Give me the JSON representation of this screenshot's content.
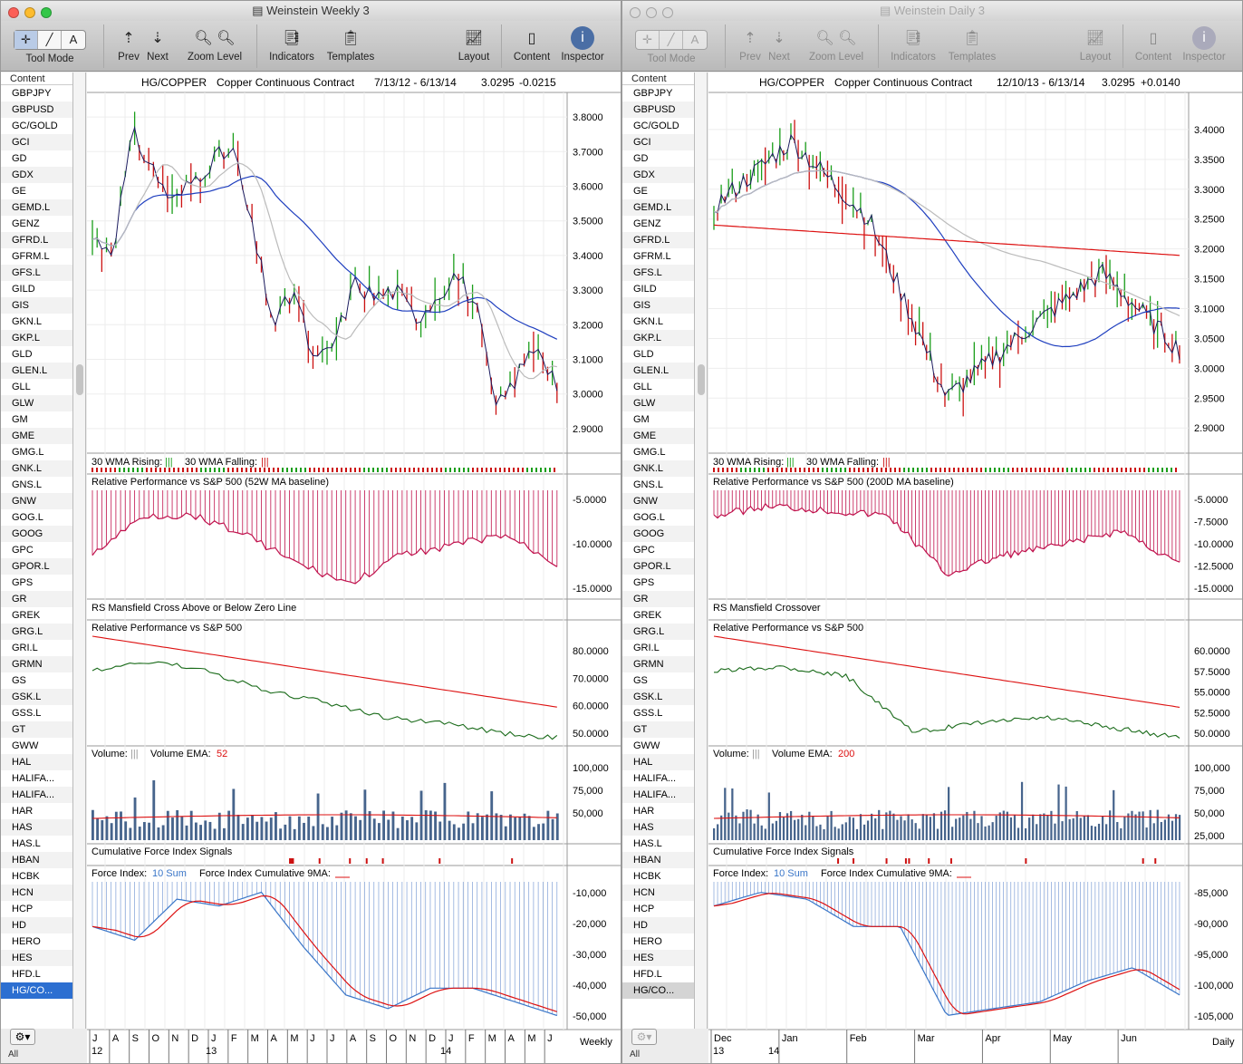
{
  "windows": [
    {
      "id": "weekly",
      "title": "Weinstein Weekly 3",
      "active": true,
      "toolbar": {
        "tool_mode": "Tool Mode",
        "prev": "Prev",
        "next": "Next",
        "zoom_level": "Zoom  Level",
        "indicators": "Indicators",
        "templates": "Templates",
        "layout": "Layout",
        "content": "Content",
        "inspector": "Inspector"
      },
      "sidebar": {
        "header": "Content",
        "items": [
          "GBPJPY",
          "GBPUSD",
          "GC/GOLD",
          "GCI",
          "GD",
          "GDX",
          "GE",
          "GEMD.L",
          "GENZ",
          "GFRD.L",
          "GFRM.L",
          "GFS.L",
          "GILD",
          "GIS",
          "GKN.L",
          "GKP.L",
          "GLD",
          "GLEN.L",
          "GLL",
          "GLW",
          "GM",
          "GME",
          "GMG.L",
          "GNK.L",
          "GNS.L",
          "GNW",
          "GOG.L",
          "GOOG",
          "GPC",
          "GPOR.L",
          "GPS",
          "GR",
          "GREK",
          "GRG.L",
          "GRI.L",
          "GRMN",
          "GS",
          "GSK.L",
          "GSS.L",
          "GT",
          "GWW",
          "HAL",
          "HALIFA...",
          "HALIFA...",
          "HAR",
          "HAS",
          "HAS.L",
          "HBAN",
          "HCBK",
          "HCN",
          "HCP",
          "HD",
          "HERO",
          "HES",
          "HFD.L",
          "HG/CO..."
        ],
        "selected": "HG/CO...",
        "footer": "All"
      },
      "header": {
        "symbol": "HG/COPPER",
        "name": "Copper Continuous Contract",
        "range": "7/13/12 - 6/13/14",
        "last": "3.0295",
        "change": "-0.0215"
      },
      "price_axis": [
        "3.8000",
        "3.7000",
        "3.6000",
        "3.5000",
        "3.4000",
        "3.3000",
        "3.2000",
        "3.1000",
        "3.0000",
        "2.9000"
      ],
      "wma_panel": {
        "rising": "30 WMA Rising:",
        "rising_mark": "|||",
        "falling": "30 WMA Falling:",
        "falling_mark": "|||"
      },
      "rp1": {
        "title": "Relative Performance vs S&P 500 (52W MA baseline)",
        "axis": [
          "-5.0000",
          "-10.0000",
          "-15.0000"
        ]
      },
      "rsm": {
        "title": "RS Mansfield Cross Above or Below Zero Line"
      },
      "rp2": {
        "title": "Relative Performance vs S&P 500",
        "axis": [
          "80.0000",
          "70.0000",
          "60.0000",
          "50.0000"
        ]
      },
      "vol": {
        "label": "Volume:",
        "mark": "|||",
        "ema": "Volume EMA:",
        "ema_val": "52",
        "axis": [
          "100,000",
          "75,000",
          "50,000"
        ]
      },
      "cfi": {
        "title": "Cumulative Force Index Signals"
      },
      "fi": {
        "label": "Force Index:",
        "sum": "10 Sum",
        "cum": "Force Index Cumulative 9MA:",
        "axis": [
          "-10,000",
          "-20,000",
          "-30,000",
          "-40,000",
          "-50,000"
        ]
      },
      "xaxis": {
        "months": [
          "J",
          "A",
          "S",
          "O",
          "N",
          "D",
          "J",
          "F",
          "M",
          "A",
          "M",
          "J",
          "J",
          "A",
          "S",
          "O",
          "N",
          "D",
          "J",
          "F",
          "M",
          "A",
          "M",
          "J"
        ],
        "years": [
          "12",
          "13",
          "14"
        ],
        "period": "Weekly"
      }
    },
    {
      "id": "daily",
      "title": "Weinstein Daily 3",
      "active": false,
      "toolbar": {
        "tool_mode": "Tool Mode",
        "prev": "Prev",
        "next": "Next",
        "zoom_level": "Zoom  Level",
        "indicators": "Indicators",
        "templates": "Templates",
        "layout": "Layout",
        "content": "Content",
        "inspector": "Inspector"
      },
      "sidebar": {
        "header": "Content",
        "items": [
          "GBPJPY",
          "GBPUSD",
          "GC/GOLD",
          "GCI",
          "GD",
          "GDX",
          "GE",
          "GEMD.L",
          "GENZ",
          "GFRD.L",
          "GFRM.L",
          "GFS.L",
          "GILD",
          "GIS",
          "GKN.L",
          "GKP.L",
          "GLD",
          "GLEN.L",
          "GLL",
          "GLW",
          "GM",
          "GME",
          "GMG.L",
          "GNK.L",
          "GNS.L",
          "GNW",
          "GOG.L",
          "GOOG",
          "GPC",
          "GPOR.L",
          "GPS",
          "GR",
          "GREK",
          "GRG.L",
          "GRI.L",
          "GRMN",
          "GS",
          "GSK.L",
          "GSS.L",
          "GT",
          "GWW",
          "HAL",
          "HALIFA...",
          "HALIFA...",
          "HAR",
          "HAS",
          "HAS.L",
          "HBAN",
          "HCBK",
          "HCN",
          "HCP",
          "HD",
          "HERO",
          "HES",
          "HFD.L",
          "HG/CO..."
        ],
        "selected": "HG/CO...",
        "footer": "All"
      },
      "header": {
        "symbol": "HG/COPPER",
        "name": "Copper Continuous Contract",
        "range": "12/10/13 - 6/13/14",
        "last": "3.0295",
        "change": "+0.0140"
      },
      "price_axis": [
        "3.4000",
        "3.3500",
        "3.3000",
        "3.2500",
        "3.2000",
        "3.1500",
        "3.1000",
        "3.0500",
        "3.0000",
        "2.9500",
        "2.9000"
      ],
      "wma_panel": {
        "rising": "30 WMA Rising:",
        "rising_mark": "|||",
        "falling": "30 WMA Falling:",
        "falling_mark": "|||"
      },
      "rp1": {
        "title": "Relative Performance vs S&P 500 (200D MA baseline)",
        "axis": [
          "-5.0000",
          "-7.5000",
          "-10.0000",
          "-12.5000",
          "-15.0000"
        ]
      },
      "rsm": {
        "title": "RS Mansfield Crossover"
      },
      "rp2": {
        "title": "Relative Performance vs S&P 500",
        "axis": [
          "60.0000",
          "57.5000",
          "55.0000",
          "52.5000",
          "50.0000"
        ]
      },
      "vol": {
        "label": "Volume:",
        "mark": "|||",
        "ema": "Volume EMA:",
        "ema_val": "200",
        "axis": [
          "100,000",
          "75,000",
          "50,000",
          "25,000"
        ]
      },
      "cfi": {
        "title": "Cumulative Force Index Signals"
      },
      "fi": {
        "label": "Force Index:",
        "sum": "10 Sum",
        "cum": "Force Index Cumulative 9MA:",
        "axis": [
          "-85,000",
          "-90,000",
          "-95,000",
          "-100,000",
          "-105,000"
        ]
      },
      "xaxis": {
        "months": [
          "Dec",
          "Jan",
          "Feb",
          "Mar",
          "Apr",
          "May",
          "Jun"
        ],
        "years": [
          "13",
          "14"
        ],
        "period": "Daily"
      }
    }
  ],
  "chart_data": [
    {
      "type": "line",
      "title": "HG/COPPER Copper Continuous Contract",
      "x": [
        "Jul-12",
        "Aug-12",
        "Sep-12",
        "Oct-12",
        "Nov-12",
        "Dec-12",
        "Jan-13",
        "Feb-13",
        "Mar-13",
        "Apr-13",
        "May-13",
        "Jun-13",
        "Jul-13",
        "Aug-13",
        "Sep-13",
        "Oct-13",
        "Nov-13",
        "Dec-13",
        "Jan-14",
        "Feb-14",
        "Mar-14",
        "Apr-14",
        "May-14",
        "Jun-14"
      ],
      "series": [
        {
          "values": [
            3.45,
            3.42,
            3.75,
            3.65,
            3.55,
            3.62,
            3.68,
            3.7,
            3.45,
            3.2,
            3.3,
            3.08,
            3.15,
            3.32,
            3.28,
            3.3,
            3.22,
            3.28,
            3.35,
            3.25,
            2.95,
            3.05,
            3.15,
            3.03
          ]
        }
      ],
      "ylim": [
        2.85,
        3.85
      ]
    },
    {
      "type": "line",
      "title": "HG/COPPER Copper Continuous Contract",
      "x": [
        "Dec",
        "Jan",
        "Feb",
        "Mar",
        "Apr",
        "May",
        "Jun"
      ],
      "series": [
        {
          "values": [
            3.27,
            3.38,
            3.25,
            2.95,
            3.06,
            3.16,
            3.03
          ]
        }
      ],
      "ylim": [
        2.87,
        3.45
      ]
    }
  ],
  "colors": {
    "bar_up": "#1a9e1a",
    "bar_down": "#cc1111",
    "ma_blue": "#1f3fbf",
    "ma_gray": "#bbbbbb",
    "ma_red": "#dd1111",
    "rp_magenta": "#c0124d",
    "rs_green": "#1a6b1a",
    "volume_blue": "#46648c",
    "force_blue": "#3a76c8",
    "selection": "#2c6fd1"
  }
}
